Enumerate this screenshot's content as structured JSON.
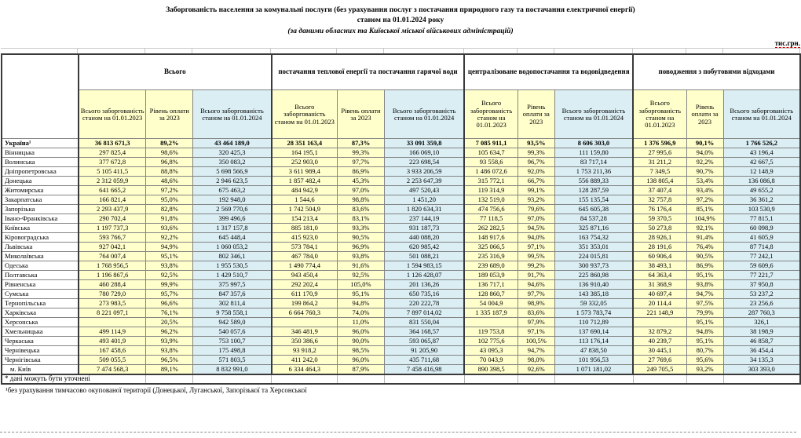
{
  "unit_label": "тис.грн.",
  "title": {
    "line1": "Заборгованість населення за комунальні послуги (без урахування послуг з постачання природного газу та постачання електричної енергії)",
    "line2": "станом на 01.01.2024 року",
    "line3": "(за даними обласних та Київської міської військових адміністрацій)"
  },
  "colors": {
    "fill_2023_yellow": "#FFFFCC",
    "fill_2024_blue": "#DAEEF3",
    "border_dark": "#3a3a3a"
  },
  "table": {
    "groups": [
      {
        "label": "Всього"
      },
      {
        "label": "постачання теплової енергії та постачання гарячої води"
      },
      {
        "label": "централізоване водопостачання та водовідведення"
      },
      {
        "label": "поводження з побутовими відходами"
      }
    ],
    "sub_headers": {
      "debt_2023": "Всього заборгованість станом на 01.01.2023",
      "pay_level": "Рівень оплати за 2023",
      "debt_2024": "Всього заборгованість станом на 01.01.2024"
    },
    "rows": [
      {
        "name": "Україна¹",
        "bold": true,
        "cells": [
          "36 813 671,3",
          "89,2%",
          "43 464 189,0",
          "28 351 163,4",
          "87,3%",
          "33 091 359,8",
          "7 085 911,1",
          "93,5%",
          "8 606 303,0",
          "1 376 596,9",
          "90,1%",
          "1 766 526,2"
        ]
      },
      {
        "name": "Вінницька",
        "cells": [
          "297 825,4",
          "98,6%",
          "320 425,3",
          "164 195,1",
          "99,3%",
          "166 069,10",
          "105 634,7",
          "99,3%",
          "111 159,80",
          "27 995,6",
          "94,0%",
          "43 196,4"
        ]
      },
      {
        "name": "Волинська",
        "cells": [
          "377 672,8",
          "96,8%",
          "350 083,2",
          "252 903,0",
          "97,7%",
          "223 698,54",
          "93 558,6",
          "96,7%",
          "83 717,14",
          "31 211,2",
          "92,2%",
          "42 667,5"
        ]
      },
      {
        "name": "Дніпропетровська",
        "cells": [
          "5 105 411,5",
          "88,8%",
          "5 698 566,9",
          "3 611 989,4",
          "86,9%",
          "3 933 206,59",
          "1 486 072,6",
          "92,0%",
          "1 753 211,36",
          "7 349,5",
          "90,7%",
          "12 148,9"
        ]
      },
      {
        "name": "Донецька",
        "cells": [
          "2 312 059,9",
          "48,6%",
          "2 946 623,5",
          "1 857 482,4",
          "45,3%",
          "2 253 647,39",
          "315 772,1",
          "66,7%",
          "556 889,33",
          "138 805,4",
          "53,4%",
          "136 086,8"
        ]
      },
      {
        "name": "Житомирська",
        "cells": [
          "641 665,2",
          "97,2%",
          "675 463,2",
          "484 942,9",
          "97,0%",
          "497 520,43",
          "119 314,9",
          "99,1%",
          "128 287,59",
          "37 407,4",
          "93,4%",
          "49 655,2"
        ]
      },
      {
        "name": "Закарпатська",
        "cells": [
          "166 821,4",
          "95,0%",
          "192 948,0",
          "1 544,6",
          "98,8%",
          "1 451,20",
          "132 519,0",
          "93,2%",
          "155 135,54",
          "32 757,8",
          "97,2%",
          "36 361,2"
        ]
      },
      {
        "name": "Запорізька",
        "cells": [
          "2 293 437,9",
          "82,8%",
          "2 569 770,6",
          "1 742 504,9",
          "83,6%",
          "1 820 634,31",
          "474 756,6",
          "79,6%",
          "645 605,38",
          "76 176,4",
          "85,1%",
          "103 530,9"
        ]
      },
      {
        "name": "Івано-Франківська",
        "cells": [
          "290 702,4",
          "91,8%",
          "399 496,6",
          "154 213,4",
          "83,1%",
          "237 144,19",
          "77 118,5",
          "97,0%",
          "84 537,28",
          "59 370,5",
          "104,9%",
          "77 815,1"
        ]
      },
      {
        "name": "Київська",
        "cells": [
          "1 197 737,3",
          "93,6%",
          "1 317 157,8",
          "885 181,0",
          "93,3%",
          "931 187,73",
          "262 282,5",
          "94,5%",
          "325 871,16",
          "50 273,8",
          "92,1%",
          "60 098,9"
        ]
      },
      {
        "name": "Кіровоградська",
        "cells": [
          "593 766,7",
          "92,2%",
          "645 448,4",
          "415 923,0",
          "90,5%",
          "440 088,20",
          "148 917,6",
          "94,0%",
          "163 754,32",
          "28 926,1",
          "91,4%",
          "41 605,9"
        ]
      },
      {
        "name": "Львівська",
        "cells": [
          "927 042,1",
          "94,9%",
          "1 060 053,2",
          "573 784,1",
          "96,9%",
          "620 985,42",
          "325 066,5",
          "97,1%",
          "351 353,01",
          "28 191,6",
          "76,4%",
          "87 714,8"
        ]
      },
      {
        "name": "Миколаївська",
        "cells": [
          "764 007,4",
          "95,1%",
          "802 346,1",
          "467 784,0",
          "93,8%",
          "501 088,21",
          "235 316,9",
          "99,5%",
          "224 015,81",
          "60 906,4",
          "90,5%",
          "77 242,1"
        ]
      },
      {
        "name": "Одеська",
        "cells": [
          "1 768 956,5",
          "93,8%",
          "1 955 530,5",
          "1 490 774,4",
          "91,6%",
          "1 594 983,15",
          "239 689,0",
          "99,2%",
          "300 937,73",
          "38 493,1",
          "86,9%",
          "59 609,6"
        ]
      },
      {
        "name": "Полтавська",
        "cells": [
          "1 196 867,6",
          "92,5%",
          "1 429 510,7",
          "943 450,4",
          "92,5%",
          "1 126 428,07",
          "189 053,9",
          "91,7%",
          "225 860,98",
          "64 363,4",
          "95,1%",
          "77 221,7"
        ]
      },
      {
        "name": "Рівненська",
        "cells": [
          "460 288,4",
          "99,9%",
          "375 997,5",
          "292 202,4",
          "105,0%",
          "201 136,26",
          "136 717,1",
          "94,6%",
          "136 910,40",
          "31 368,9",
          "93,8%",
          "37 950,8"
        ]
      },
      {
        "name": "Сумська",
        "cells": [
          "780 729,0",
          "95,7%",
          "847 357,6",
          "611 170,9",
          "95,1%",
          "650 735,16",
          "128 860,7",
          "97,7%",
          "143 385,18",
          "40 697,4",
          "94,7%",
          "53 237,2"
        ]
      },
      {
        "name": "Тернопільська",
        "cells": [
          "273 983,5",
          "96,6%",
          "302 811,4",
          "199 864,2",
          "94,8%",
          "220 222,78",
          "54 004,9",
          "98,9%",
          "59 332,05",
          "20 114,4",
          "97,5%",
          "23 256,6"
        ]
      },
      {
        "name": "Харківська",
        "cells": [
          "8 221 097,1",
          "76,1%",
          "9 758 558,1",
          "6 664 760,3",
          "74,0%",
          "7 897 014,02",
          "1 335 187,9",
          "83,6%",
          "1 573 783,74",
          "221 148,9",
          "79,9%",
          "287 760,3"
        ]
      },
      {
        "name": "Херсонська",
        "cells": [
          "",
          "20,5%",
          "942 589,0",
          "",
          "11,0%",
          "831 550,04",
          "",
          "97,9%",
          "110 712,89",
          "",
          "95,1%",
          "326,1"
        ]
      },
      {
        "name": "Хмельницька",
        "cells": [
          "499 114,9",
          "96,2%",
          "540 057,6",
          "346 481,9",
          "96,0%",
          "364 168,57",
          "119 753,8",
          "97,1%",
          "137 690,14",
          "32 879,2",
          "94,8%",
          "38 198,9"
        ]
      },
      {
        "name": "Черкаська",
        "cells": [
          "493 401,9",
          "93,9%",
          "753 100,7",
          "350 386,6",
          "90,0%",
          "593 065,87",
          "102 775,6",
          "100,5%",
          "113 176,14",
          "40 239,7",
          "95,1%",
          "46 858,7"
        ]
      },
      {
        "name": "Чернівецька",
        "cells": [
          "167 458,6",
          "93,8%",
          "175 498,8",
          "93 918,2",
          "98,5%",
          "91 205,90",
          "43 095,3",
          "94,7%",
          "47 838,50",
          "30 445,1",
          "80,7%",
          "36 454,4"
        ]
      },
      {
        "name": "Чернігівська",
        "cells": [
          "509 055,5",
          "96,5%",
          "571 803,5",
          "411 242,0",
          "96,0%",
          "435 711,68",
          "70 043,9",
          "98,0%",
          "101 956,53",
          "27 769,6",
          "95,6%",
          "34 135,3"
        ]
      },
      {
        "name": "м. Київ",
        "indent": true,
        "cells": [
          "7 474 568,3",
          "89,1%",
          "8 832 991,0",
          "6 334 464,3",
          "87,9%",
          "7 458 416,98",
          "890 398,5",
          "92,6%",
          "1 071 181,02",
          "249 705,5",
          "93,2%",
          "303 393,0"
        ]
      }
    ],
    "footnote1": "* дані можуть бути уточнені",
    "footnote2": "¹без урахування тимчасово окупованої території (Донецької, Луганської, Запорізької та Херсонської"
  }
}
